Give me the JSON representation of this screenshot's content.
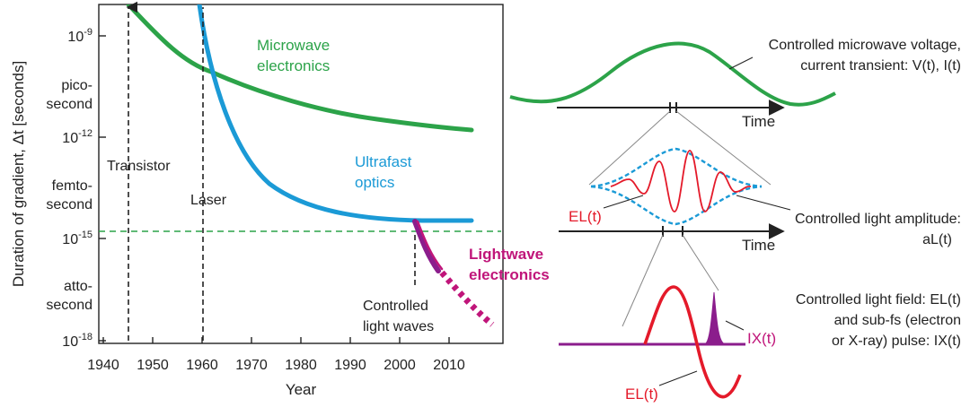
{
  "colors": {
    "microwave": "#2ca349",
    "optics": "#1b9ad6",
    "lightwave": "#c0157a",
    "light_wave_fill": "#8b1d8c",
    "field": "#e41a2a",
    "reference_line": "#2ca349"
  },
  "chart": {
    "ylabel": "Duration of gradient, Δt [seconds]",
    "xlabel": "Year",
    "x_ticks": [
      "1940",
      "1950",
      "1960",
      "1970",
      "1980",
      "1990",
      "2000",
      "2010"
    ],
    "y_ticks": [
      {
        "base": "10",
        "exp": "-9"
      },
      {
        "base": "10",
        "exp": "-12"
      },
      {
        "base": "10",
        "exp": "-15"
      },
      {
        "base": "10",
        "exp": "-18"
      }
    ],
    "y_words": [
      {
        "line1": "pico-",
        "line2": "second"
      },
      {
        "line1": "femto-",
        "line2": "second"
      },
      {
        "line1": "atto-",
        "line2": "second"
      }
    ],
    "milestones": [
      {
        "label": "Transistor",
        "year": 1945
      },
      {
        "label": "Laser",
        "year": 1960
      },
      {
        "label": "Controlled",
        "label2": "light waves",
        "year": 2003
      }
    ],
    "curves": {
      "microwave": {
        "line1": "Microwave",
        "line2": "electronics"
      },
      "optics": {
        "line1": "Ultrafast",
        "line2": "optics"
      },
      "lightwave": {
        "line1": "Lightwave",
        "line2": "electronics"
      }
    }
  },
  "panels": {
    "top": {
      "label1": "Controlled microwave voltage,",
      "label2": "current transient: V(t), I(t)",
      "axis": "Time"
    },
    "middle": {
      "label1": "Controlled light amplitude:",
      "label2": "aL(t)",
      "axis": "Time",
      "field_label": "EL(t)"
    },
    "bottom": {
      "label1": "Controlled light field: EL(t)",
      "label2": "and sub-fs (electron",
      "label3": "or X-ray) pulse: IX(t)",
      "pulse_label": "IX(t)",
      "field_label": "EL(t)"
    }
  }
}
